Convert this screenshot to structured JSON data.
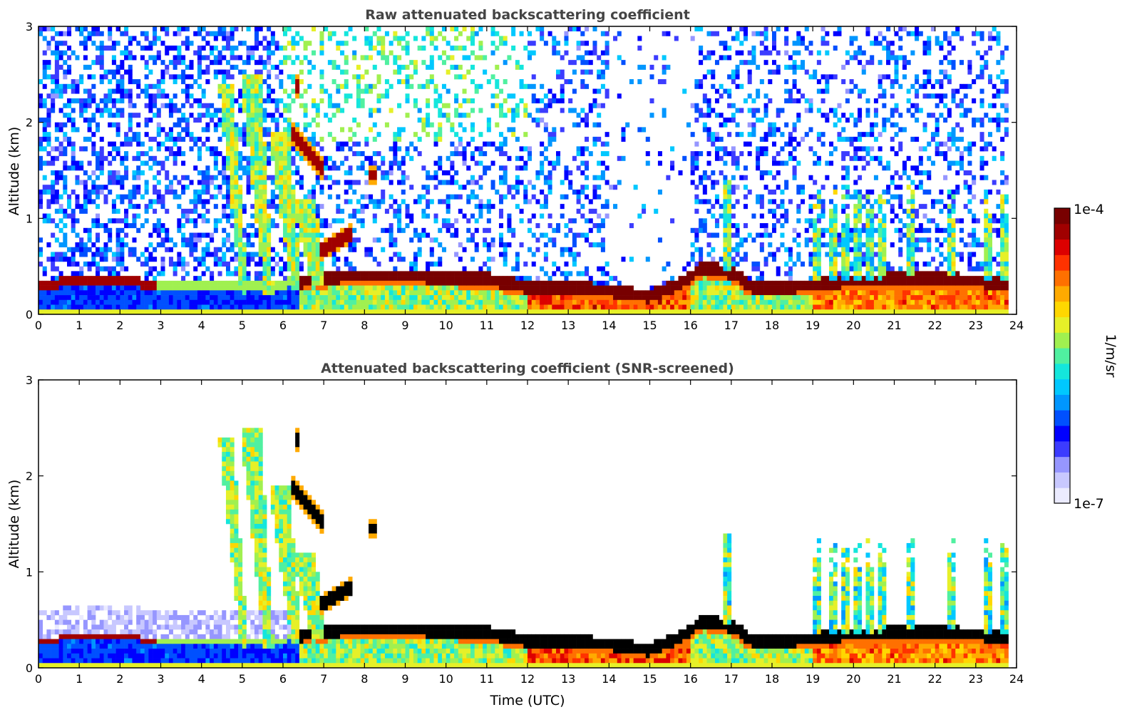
{
  "chart_data": [
    {
      "type": "heatmap",
      "title": "Raw attenuated backscattering coefficient",
      "xlabel": "",
      "ylabel": "Altitude (km)",
      "xlim": [
        0,
        24
      ],
      "ylim": [
        0,
        3
      ],
      "xticks": [
        "0",
        "1",
        "2",
        "3",
        "4",
        "5",
        "6",
        "7",
        "8",
        "9",
        "10",
        "11",
        "12",
        "13",
        "14",
        "15",
        "16",
        "17",
        "18",
        "19",
        "20",
        "21",
        "22",
        "23",
        "24"
      ],
      "yticks": [
        "0",
        "1",
        "2",
        "3"
      ],
      "screened": false
    },
    {
      "type": "heatmap",
      "title": "Attenuated backscattering coefficient (SNR-screened)",
      "xlabel": "Time (UTC)",
      "ylabel": "Altitude (km)",
      "xlim": [
        0,
        24
      ],
      "ylim": [
        0,
        3
      ],
      "xticks": [
        "0",
        "1",
        "2",
        "3",
        "4",
        "5",
        "6",
        "7",
        "8",
        "9",
        "10",
        "11",
        "12",
        "13",
        "14",
        "15",
        "16",
        "17",
        "18",
        "19",
        "20",
        "21",
        "22",
        "23",
        "24"
      ],
      "yticks": [
        "0",
        "1",
        "2",
        "3"
      ],
      "screened": true
    }
  ],
  "colorbar": {
    "label": "1/m/sr",
    "max_label": "1e-4",
    "min_label": "1e-7",
    "colors": [
      "#ebebff",
      "#c8c8ff",
      "#9696ff",
      "#3c3cff",
      "#0000ff",
      "#0050ff",
      "#0096ff",
      "#00c8ff",
      "#14e6dc",
      "#50f0a0",
      "#a0f050",
      "#e6f028",
      "#ffd700",
      "#ffaa00",
      "#ff7000",
      "#ff3200",
      "#dc0000",
      "#a00000",
      "#780000"
    ]
  },
  "features": {
    "boundary_layer": [
      [
        0,
        0.32
      ],
      [
        1,
        0.33
      ],
      [
        2,
        0.33
      ],
      [
        3,
        0.32
      ],
      [
        6,
        0.32
      ],
      [
        7.2,
        0.4
      ],
      [
        8,
        0.42
      ],
      [
        10,
        0.4
      ],
      [
        11,
        0.38
      ],
      [
        12,
        0.3
      ],
      [
        13,
        0.3
      ],
      [
        14,
        0.26
      ],
      [
        15,
        0.2
      ],
      [
        15.8,
        0.35
      ],
      [
        16.3,
        0.5
      ],
      [
        17,
        0.45
      ],
      [
        17.5,
        0.3
      ],
      [
        18.5,
        0.3
      ],
      [
        19.5,
        0.35
      ],
      [
        21,
        0.38
      ],
      [
        22.5,
        0.38
      ],
      [
        23.3,
        0.35
      ],
      [
        23.8,
        0.35
      ]
    ],
    "plumes": [
      {
        "t": 4.6,
        "h": 2.4,
        "w": 0.35
      },
      {
        "t": 5.2,
        "h": 2.5,
        "w": 0.5
      },
      {
        "t": 5.9,
        "h": 1.9,
        "w": 0.5
      },
      {
        "t": 6.5,
        "h": 1.2,
        "w": 0.6
      }
    ],
    "red_layers": [
      {
        "t0": 6.2,
        "t1": 7.0,
        "h0": 1.9,
        "h1": 1.5
      },
      {
        "t0": 6.9,
        "t1": 7.7,
        "h0": 0.65,
        "h1": 0.85
      },
      {
        "t0": 8.1,
        "t1": 8.3,
        "h0": 1.45,
        "h1": 1.45
      },
      {
        "t0": 6.3,
        "t1": 6.4,
        "h0": 2.4,
        "h1": 2.35
      }
    ],
    "spikes": [
      16.9,
      19.1,
      19.5,
      19.8,
      20.1,
      20.4,
      20.7,
      21.4,
      22.4,
      23.3,
      23.7
    ]
  }
}
